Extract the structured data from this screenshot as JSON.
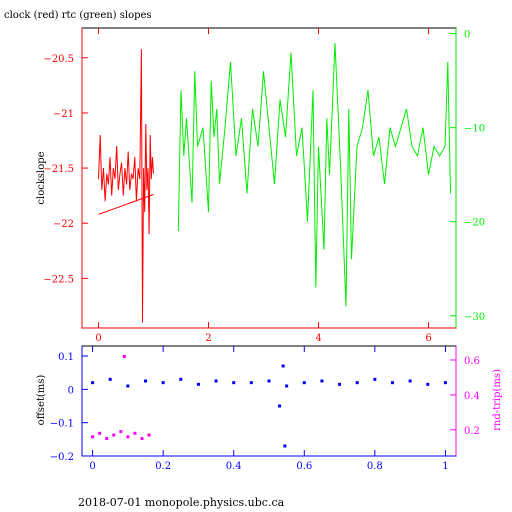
{
  "title": "clock (red) rtc (green) slopes",
  "footer": "2018-07-01 monopole.physics.ubc.ca",
  "colors": {
    "clock": "#ff0000",
    "rtc": "#00ee00",
    "offset": "#0000ff",
    "rndtrip": "#ff00ff"
  },
  "chart_data": [
    {
      "type": "line",
      "title": "clock (red) rtc (green) slopes",
      "ylabel": "clockslope",
      "xlim": [
        -0.3,
        6.5
      ],
      "ylim": [
        -22.95,
        -20.23
      ],
      "y2lim": [
        -31.3,
        0.6
      ],
      "xticks": [
        "0",
        "2",
        "4",
        "6"
      ],
      "yticks": [
        "-20.5",
        "-21",
        "-21.5",
        "-22",
        "-22.5"
      ],
      "y2ticks": [
        "0",
        "-10",
        "-20",
        "-30"
      ],
      "series": [
        {
          "name": "clock",
          "color": "#ff0000",
          "axis": "left",
          "x": [
            0.0,
            0.03,
            0.06,
            0.09,
            0.12,
            0.15,
            0.18,
            0.21,
            0.24,
            0.27,
            0.3,
            0.33,
            0.36,
            0.39,
            0.42,
            0.45,
            0.48,
            0.51,
            0.54,
            0.57,
            0.6,
            0.63,
            0.66,
            0.69,
            0.72,
            0.75,
            0.78,
            0.8,
            0.82,
            0.84,
            0.86,
            0.88,
            0.9,
            0.92,
            0.94,
            0.96,
            0.98,
            1.0
          ],
          "y": [
            -21.6,
            -21.2,
            -21.7,
            -21.5,
            -21.8,
            -21.55,
            -21.65,
            -21.4,
            -21.75,
            -21.5,
            -21.6,
            -21.3,
            -21.7,
            -21.55,
            -21.45,
            -21.75,
            -21.5,
            -21.65,
            -21.35,
            -21.7,
            -21.55,
            -21.6,
            -21.4,
            -21.8,
            -21.5,
            -21.6,
            -20.42,
            -22.9,
            -21.5,
            -21.9,
            -21.1,
            -21.7,
            -21.5,
            -22.1,
            -21.2,
            -21.6,
            -21.4,
            -21.55
          ]
        },
        {
          "name": "clock-trend",
          "color": "#ff0000",
          "axis": "left",
          "x": [
            0.0,
            1.0
          ],
          "y": [
            -21.92,
            -21.74
          ]
        },
        {
          "name": "rtc",
          "color": "#00ee00",
          "axis": "right",
          "x": [
            1.45,
            1.5,
            1.55,
            1.6,
            1.7,
            1.75,
            1.8,
            1.9,
            2.0,
            2.05,
            2.1,
            2.15,
            2.2,
            2.3,
            2.4,
            2.5,
            2.6,
            2.7,
            2.8,
            2.9,
            3.0,
            3.1,
            3.2,
            3.3,
            3.4,
            3.5,
            3.6,
            3.7,
            3.8,
            3.9,
            3.95,
            4.0,
            4.1,
            4.15,
            4.2,
            4.3,
            4.4,
            4.5,
            4.55,
            4.6,
            4.7,
            4.8,
            4.9,
            5.0,
            5.1,
            5.2,
            5.3,
            5.4,
            5.5,
            5.6,
            5.7,
            5.8,
            5.9,
            6.0,
            6.1,
            6.2,
            6.3,
            6.35,
            6.4
          ],
          "y": [
            -21,
            -6,
            -13,
            -9,
            -18,
            -4,
            -12,
            -10,
            -19,
            -5,
            -11,
            -8,
            -16,
            -10,
            -3,
            -13,
            -9,
            -17,
            -8,
            -12,
            -4,
            -10,
            -16,
            -7,
            -11,
            -2,
            -13,
            -10,
            -20,
            -6,
            -27,
            -12,
            -23,
            -9,
            -15,
            -1,
            -14,
            -29,
            -8,
            -24,
            -12,
            -10,
            -6,
            -13,
            -11,
            -16,
            -10,
            -12,
            -10,
            -8,
            -12,
            -13,
            -10,
            -15,
            -12,
            -13,
            -12,
            -3,
            -17
          ]
        }
      ]
    },
    {
      "type": "scatter",
      "ylabel": "offset(ms)",
      "y2label": "rnd-trip(ms)",
      "xlim": [
        -0.03,
        1.03
      ],
      "ylim": [
        -0.2,
        0.13
      ],
      "y2lim": [
        0.05,
        0.68
      ],
      "xticks": [
        "0",
        "0.2",
        "0.4",
        "0.6",
        "0.8",
        "1"
      ],
      "yticks": [
        "0.1",
        "0",
        "-0.1",
        "-0.2"
      ],
      "y2ticks": [
        "0.6",
        "0.4",
        "0.2"
      ],
      "series": [
        {
          "name": "offset",
          "color": "#0000ff",
          "axis": "left",
          "x": [
            0.0,
            0.05,
            0.1,
            0.15,
            0.2,
            0.25,
            0.3,
            0.35,
            0.4,
            0.45,
            0.5,
            0.53,
            0.54,
            0.545,
            0.55,
            0.6,
            0.65,
            0.7,
            0.75,
            0.8,
            0.85,
            0.9,
            0.95,
            1.0
          ],
          "y": [
            0.02,
            0.03,
            0.01,
            0.025,
            0.02,
            0.03,
            0.015,
            0.025,
            0.02,
            0.02,
            0.025,
            -0.05,
            0.07,
            -0.17,
            0.01,
            0.02,
            0.025,
            0.015,
            0.02,
            0.03,
            0.02,
            0.025,
            0.015,
            0.02
          ]
        },
        {
          "name": "rnd-trip",
          "color": "#ff00ff",
          "axis": "right",
          "x": [
            0.0,
            0.02,
            0.04,
            0.06,
            0.08,
            0.09,
            0.1,
            0.12,
            0.14,
            0.16
          ],
          "y": [
            0.16,
            0.18,
            0.15,
            0.17,
            0.19,
            0.62,
            0.16,
            0.18,
            0.15,
            0.17
          ]
        }
      ]
    }
  ]
}
